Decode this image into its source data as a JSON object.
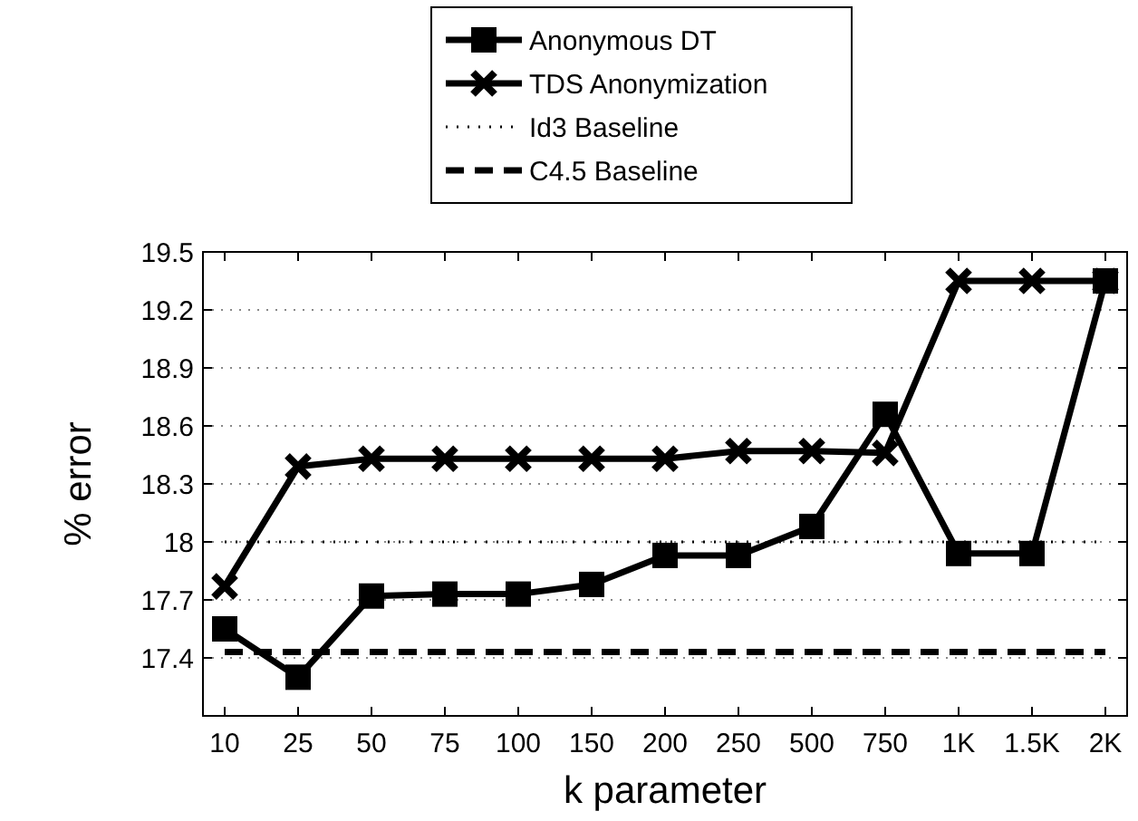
{
  "chart_data": {
    "type": "line",
    "xlabel": "k parameter",
    "ylabel": "% error",
    "categories": [
      "10",
      "25",
      "50",
      "75",
      "100",
      "150",
      "200",
      "250",
      "500",
      "750",
      "1K",
      "1.5K",
      "2K"
    ],
    "series": [
      {
        "name": "Anonymous DT",
        "color": "#000000",
        "marker": "square",
        "line_style": "solid",
        "values": [
          17.55,
          17.3,
          17.72,
          17.73,
          17.73,
          17.78,
          17.93,
          17.93,
          18.08,
          18.66,
          17.94,
          17.94,
          19.35
        ]
      },
      {
        "name": "TDS Anonymization",
        "color": "#000000",
        "marker": "cross",
        "line_style": "solid",
        "values": [
          17.77,
          18.39,
          18.43,
          18.43,
          18.43,
          18.43,
          18.43,
          18.47,
          18.47,
          18.46,
          19.35,
          19.35,
          19.35
        ]
      },
      {
        "name": "Id3 Baseline",
        "color": "#000000",
        "marker": "none",
        "line_style": "dotted",
        "values": [
          18.0,
          18.0,
          18.0,
          18.0,
          18.0,
          18.0,
          18.0,
          18.0,
          18.0,
          18.0,
          18.0,
          18.0,
          18.0
        ]
      },
      {
        "name": "C4.5 Baseline",
        "color": "#000000",
        "marker": "none",
        "line_style": "dashed",
        "values": [
          17.43,
          17.43,
          17.43,
          17.43,
          17.43,
          17.43,
          17.43,
          17.43,
          17.43,
          17.43,
          17.43,
          17.43,
          17.43
        ]
      }
    ],
    "ylim": [
      17.1,
      19.5
    ],
    "yticks": [
      17.4,
      17.7,
      18,
      18.3,
      18.6,
      18.9,
      19.2,
      19.5
    ],
    "grid": "y",
    "legend": "top"
  }
}
